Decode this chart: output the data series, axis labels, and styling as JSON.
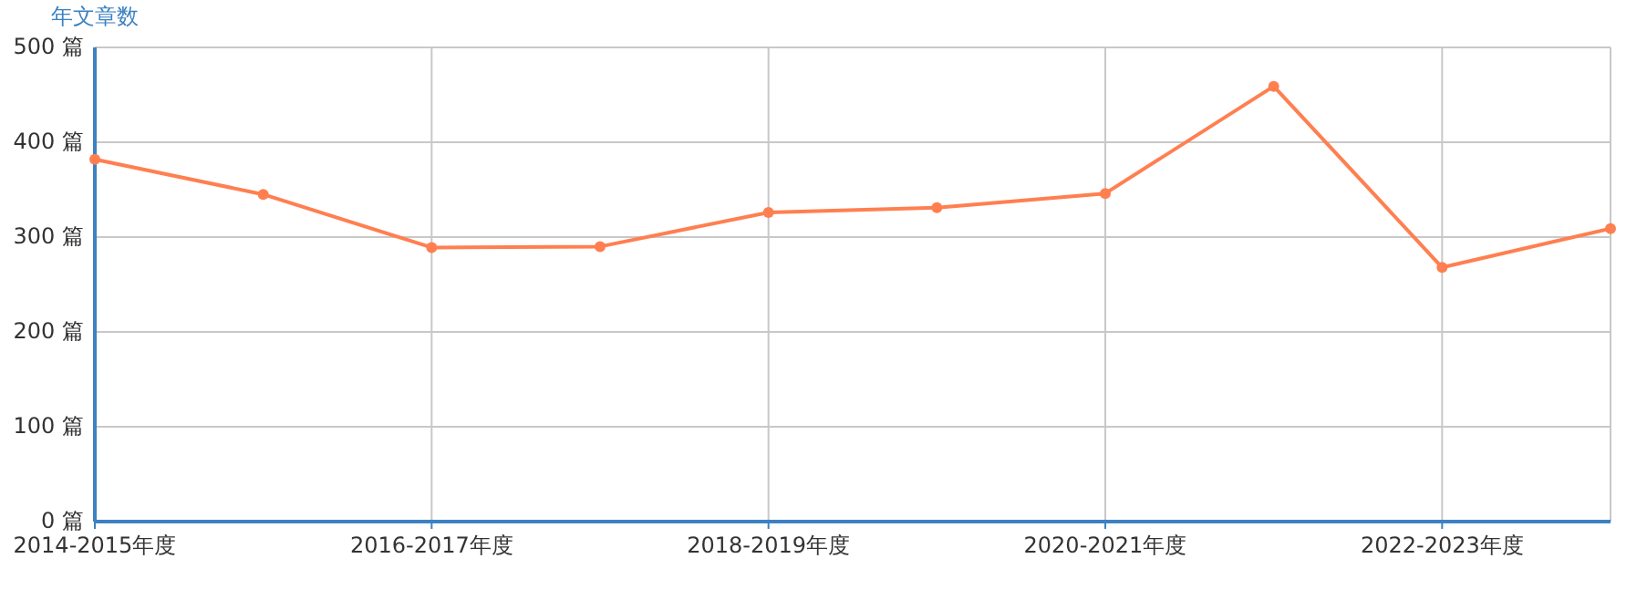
{
  "chart_data": {
    "type": "line",
    "ylabel": "年文章数",
    "categories": [
      "2014-2015年度",
      null,
      "2016-2017年度",
      null,
      "2018-2019年度",
      null,
      "2020-2021年度",
      null,
      "2022-2023年度",
      null
    ],
    "series": [
      {
        "color": "#ff7f50",
        "values": [
          382,
          345,
          289,
          290,
          326,
          331,
          346,
          459,
          268,
          309
        ]
      }
    ],
    "ylim": [
      0,
      500
    ],
    "yticks": [
      {
        "value": 0,
        "label": "0 篇"
      },
      {
        "value": 100,
        "label": "100 篇"
      },
      {
        "value": 200,
        "label": "200 篇"
      },
      {
        "value": 300,
        "label": "300 篇"
      },
      {
        "value": 400,
        "label": "400 篇"
      },
      {
        "value": 500,
        "label": "500 篇"
      }
    ],
    "grid": true,
    "marker": "circle",
    "line_style": "solid"
  }
}
